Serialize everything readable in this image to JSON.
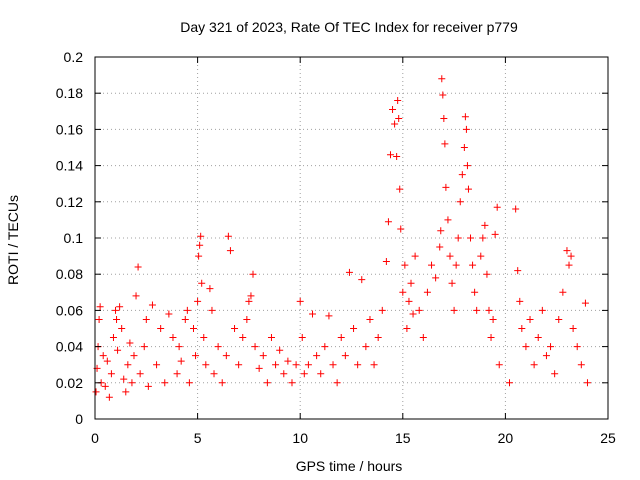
{
  "chart_data": {
    "type": "scatter",
    "title": "Day 321 of 2023, Rate Of TEC Index for receiver p779",
    "xlabel": "GPS time / hours",
    "ylabel": "ROTI / TECUs",
    "xlim": [
      0,
      25
    ],
    "ylim": [
      0,
      0.2
    ],
    "x_ticks": [
      0,
      5,
      10,
      15,
      20,
      25
    ],
    "y_ticks": [
      0,
      0.02,
      0.04,
      0.06,
      0.08,
      0.1,
      0.12,
      0.14,
      0.16,
      0.18,
      0.2
    ],
    "x_tick_labels": [
      "0",
      "5",
      "10",
      "15",
      "20",
      "25"
    ],
    "y_tick_labels": [
      "0",
      "0.02",
      "0.04",
      "0.06",
      "0.08",
      "0.1",
      "0.12",
      "0.14",
      "0.16",
      "0.18",
      "0.2"
    ],
    "grid": true,
    "marker": "plus",
    "color": "#ff0000",
    "series": [
      {
        "points": [
          [
            0.05,
            0.015
          ],
          [
            0.1,
            0.028
          ],
          [
            0.15,
            0.04
          ],
          [
            0.2,
            0.055
          ],
          [
            0.25,
            0.062
          ],
          [
            0.3,
            0.02
          ],
          [
            0.4,
            0.035
          ],
          [
            0.5,
            0.018
          ],
          [
            0.6,
            0.032
          ],
          [
            0.7,
            0.012
          ],
          [
            0.8,
            0.025
          ],
          [
            0.9,
            0.045
          ],
          [
            1.0,
            0.06
          ],
          [
            1.05,
            0.055
          ],
          [
            1.1,
            0.038
          ],
          [
            1.2,
            0.062
          ],
          [
            1.3,
            0.05
          ],
          [
            1.4,
            0.022
          ],
          [
            1.5,
            0.015
          ],
          [
            1.6,
            0.03
          ],
          [
            1.7,
            0.042
          ],
          [
            1.8,
            0.02
          ],
          [
            1.9,
            0.035
          ],
          [
            2.0,
            0.068
          ],
          [
            2.1,
            0.084
          ],
          [
            2.2,
            0.025
          ],
          [
            2.4,
            0.04
          ],
          [
            2.5,
            0.055
          ],
          [
            2.6,
            0.018
          ],
          [
            2.8,
            0.063
          ],
          [
            3.0,
            0.03
          ],
          [
            3.2,
            0.05
          ],
          [
            3.4,
            0.02
          ],
          [
            3.6,
            0.058
          ],
          [
            3.8,
            0.045
          ],
          [
            4.0,
            0.025
          ],
          [
            4.1,
            0.04
          ],
          [
            4.2,
            0.032
          ],
          [
            4.4,
            0.055
          ],
          [
            4.5,
            0.06
          ],
          [
            4.6,
            0.02
          ],
          [
            4.8,
            0.05
          ],
          [
            4.9,
            0.035
          ],
          [
            5.0,
            0.065
          ],
          [
            5.05,
            0.09
          ],
          [
            5.1,
            0.096
          ],
          [
            5.15,
            0.101
          ],
          [
            5.2,
            0.075
          ],
          [
            5.3,
            0.045
          ],
          [
            5.4,
            0.03
          ],
          [
            5.6,
            0.072
          ],
          [
            5.7,
            0.06
          ],
          [
            5.8,
            0.025
          ],
          [
            6.0,
            0.04
          ],
          [
            6.2,
            0.02
          ],
          [
            6.4,
            0.035
          ],
          [
            6.5,
            0.101
          ],
          [
            6.6,
            0.093
          ],
          [
            6.8,
            0.05
          ],
          [
            7.0,
            0.03
          ],
          [
            7.2,
            0.045
          ],
          [
            7.4,
            0.055
          ],
          [
            7.5,
            0.065
          ],
          [
            7.6,
            0.068
          ],
          [
            7.7,
            0.08
          ],
          [
            7.8,
            0.04
          ],
          [
            8.0,
            0.028
          ],
          [
            8.2,
            0.035
          ],
          [
            8.4,
            0.02
          ],
          [
            8.6,
            0.045
          ],
          [
            8.8,
            0.03
          ],
          [
            9.0,
            0.038
          ],
          [
            9.2,
            0.025
          ],
          [
            9.4,
            0.032
          ],
          [
            9.6,
            0.02
          ],
          [
            9.8,
            0.03
          ],
          [
            10.0,
            0.065
          ],
          [
            10.1,
            0.045
          ],
          [
            10.2,
            0.025
          ],
          [
            10.4,
            0.03
          ],
          [
            10.6,
            0.058
          ],
          [
            10.8,
            0.035
          ],
          [
            11.0,
            0.025
          ],
          [
            11.2,
            0.04
          ],
          [
            11.4,
            0.057
          ],
          [
            11.6,
            0.03
          ],
          [
            11.8,
            0.02
          ],
          [
            12.0,
            0.045
          ],
          [
            12.2,
            0.035
          ],
          [
            12.4,
            0.081
          ],
          [
            12.6,
            0.05
          ],
          [
            12.8,
            0.03
          ],
          [
            13.0,
            0.077
          ],
          [
            13.2,
            0.04
          ],
          [
            13.4,
            0.055
          ],
          [
            13.6,
            0.03
          ],
          [
            13.8,
            0.045
          ],
          [
            14.0,
            0.06
          ],
          [
            14.2,
            0.087
          ],
          [
            14.3,
            0.109
          ],
          [
            14.4,
            0.146
          ],
          [
            14.5,
            0.171
          ],
          [
            14.6,
            0.163
          ],
          [
            14.7,
            0.145
          ],
          [
            14.75,
            0.176
          ],
          [
            14.8,
            0.166
          ],
          [
            14.85,
            0.127
          ],
          [
            14.9,
            0.105
          ],
          [
            15.0,
            0.07
          ],
          [
            15.1,
            0.085
          ],
          [
            15.2,
            0.05
          ],
          [
            15.3,
            0.065
          ],
          [
            15.4,
            0.075
          ],
          [
            15.5,
            0.058
          ],
          [
            15.6,
            0.09
          ],
          [
            15.8,
            0.06
          ],
          [
            16.0,
            0.045
          ],
          [
            16.2,
            0.07
          ],
          [
            16.4,
            0.085
          ],
          [
            16.6,
            0.078
          ],
          [
            16.8,
            0.095
          ],
          [
            16.85,
            0.104
          ],
          [
            16.9,
            0.188
          ],
          [
            16.95,
            0.179
          ],
          [
            17.0,
            0.166
          ],
          [
            17.05,
            0.152
          ],
          [
            17.1,
            0.128
          ],
          [
            17.2,
            0.11
          ],
          [
            17.3,
            0.09
          ],
          [
            17.4,
            0.075
          ],
          [
            17.5,
            0.06
          ],
          [
            17.6,
            0.085
          ],
          [
            17.7,
            0.1
          ],
          [
            17.8,
            0.12
          ],
          [
            17.9,
            0.135
          ],
          [
            18.0,
            0.15
          ],
          [
            18.05,
            0.167
          ],
          [
            18.1,
            0.16
          ],
          [
            18.15,
            0.14
          ],
          [
            18.2,
            0.127
          ],
          [
            18.3,
            0.1
          ],
          [
            18.4,
            0.085
          ],
          [
            18.5,
            0.07
          ],
          [
            18.6,
            0.06
          ],
          [
            18.8,
            0.09
          ],
          [
            18.9,
            0.1
          ],
          [
            19.0,
            0.107
          ],
          [
            19.1,
            0.08
          ],
          [
            19.2,
            0.06
          ],
          [
            19.3,
            0.045
          ],
          [
            19.4,
            0.055
          ],
          [
            19.5,
            0.102
          ],
          [
            19.6,
            0.117
          ],
          [
            19.7,
            0.03
          ],
          [
            20.2,
            0.02
          ],
          [
            20.5,
            0.116
          ],
          [
            20.6,
            0.082
          ],
          [
            20.7,
            0.065
          ],
          [
            20.8,
            0.05
          ],
          [
            21.0,
            0.04
          ],
          [
            21.2,
            0.055
          ],
          [
            21.4,
            0.03
          ],
          [
            21.6,
            0.045
          ],
          [
            21.8,
            0.06
          ],
          [
            22.0,
            0.035
          ],
          [
            22.2,
            0.04
          ],
          [
            22.4,
            0.025
          ],
          [
            22.6,
            0.055
          ],
          [
            22.8,
            0.07
          ],
          [
            23.0,
            0.093
          ],
          [
            23.1,
            0.085
          ],
          [
            23.2,
            0.09
          ],
          [
            23.3,
            0.05
          ],
          [
            23.5,
            0.04
          ],
          [
            23.7,
            0.03
          ],
          [
            23.9,
            0.064
          ],
          [
            24.0,
            0.02
          ]
        ]
      }
    ]
  }
}
